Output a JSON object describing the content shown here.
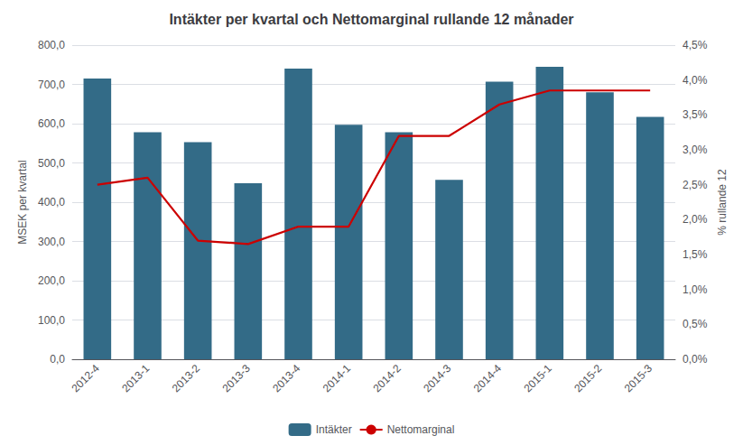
{
  "chart_data": {
    "type": "bar",
    "title": "Intäkter per kvartal och Nettomarginal rullande 12 månader",
    "categories": [
      "2012-4",
      "2013-1",
      "2013-2",
      "2013-3",
      "2013-4",
      "2014-1",
      "2014-2",
      "2014-3",
      "2014-4",
      "2015-1",
      "2015-2",
      "2015-3"
    ],
    "series": [
      {
        "name": "Intäkter",
        "type": "bar",
        "color": "#336B87",
        "values": [
          715,
          578,
          553,
          448,
          740,
          597,
          578,
          457,
          707,
          745,
          680,
          617
        ]
      },
      {
        "name": "Nettomarginal",
        "type": "line",
        "color": "#CC0000",
        "axis": "y2",
        "values": [
          2.5,
          2.6,
          1.7,
          1.65,
          1.9,
          1.9,
          3.2,
          3.2,
          3.65,
          3.85,
          3.85,
          3.85
        ]
      }
    ],
    "ylabel": "MSEK per kvartal",
    "y2label": "% rullande 12",
    "ylim": [
      0,
      800
    ],
    "yticks": [
      {
        "value": 0,
        "label": "0,0"
      },
      {
        "value": 100,
        "label": "100,0"
      },
      {
        "value": 200,
        "label": "200,0"
      },
      {
        "value": 300,
        "label": "300,0"
      },
      {
        "value": 400,
        "label": "400,0"
      },
      {
        "value": 500,
        "label": "500,0"
      },
      {
        "value": 600,
        "label": "600,0"
      },
      {
        "value": 700,
        "label": "700,0"
      },
      {
        "value": 800,
        "label": "800,0"
      }
    ],
    "y2lim": [
      0,
      4.5
    ],
    "y2ticks": [
      {
        "value": 0.0,
        "label": "0,0%"
      },
      {
        "value": 0.5,
        "label": "0,5%"
      },
      {
        "value": 1.0,
        "label": "1,0%"
      },
      {
        "value": 1.5,
        "label": "1,5%"
      },
      {
        "value": 2.0,
        "label": "2,0%"
      },
      {
        "value": 2.5,
        "label": "2,5%"
      },
      {
        "value": 3.0,
        "label": "3,0%"
      },
      {
        "value": 3.5,
        "label": "3,5%"
      },
      {
        "value": 4.0,
        "label": "4,0%"
      },
      {
        "value": 4.5,
        "label": "4,5%"
      }
    ],
    "grid": true,
    "legend": "bottom"
  }
}
